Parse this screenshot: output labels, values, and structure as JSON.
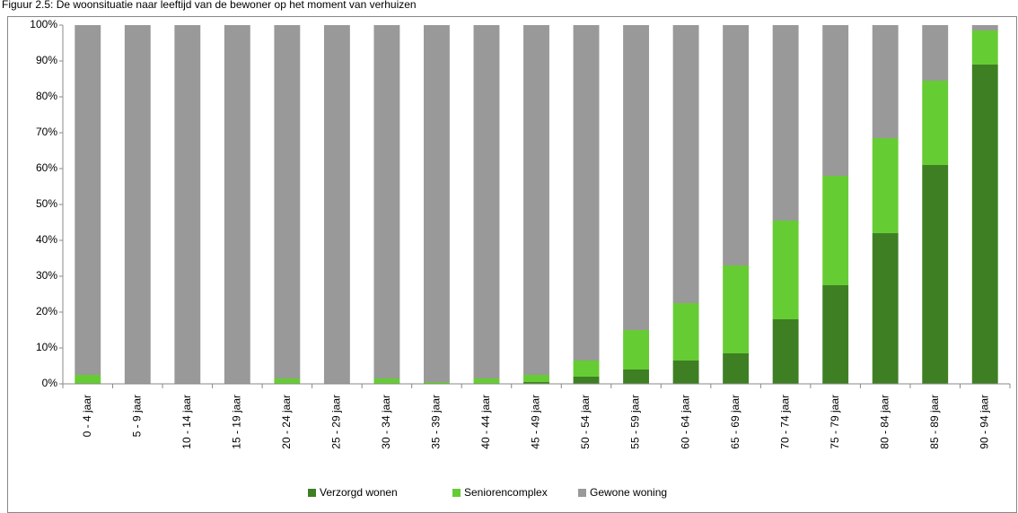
{
  "chart_data": {
    "type": "stacked-bar",
    "title": "Figuur 2.5: De woonsituatie naar leeftijd van de bewoner op het moment van verhuizen",
    "categories": [
      "0 - 4 jaar",
      "5 - 9 jaar",
      "10 - 14 jaar",
      "15 - 19 jaar",
      "20 - 24 jaar",
      "25 - 29 jaar",
      "30 - 34 jaar",
      "35 - 39 jaar",
      "40 - 44 jaar",
      "45 - 49 jaar",
      "50 - 54 jaar",
      "55 - 59 jaar",
      "60 - 64 jaar",
      "65 - 69 jaar",
      "70 - 74 jaar",
      "75 - 79 jaar",
      "80 - 84 jaar",
      "85 - 89 jaar",
      "90 - 94 jaar"
    ],
    "series": [
      {
        "name": "Verzorgd wonen",
        "color": "#3f7f24",
        "values": [
          0,
          0,
          0,
          0,
          0,
          0,
          0,
          0,
          0,
          0.5,
          2,
          4,
          6.5,
          8.5,
          18,
          27.5,
          42,
          61,
          89
        ]
      },
      {
        "name": "Seniorencomplex",
        "color": "#66cc33",
        "values": [
          2.5,
          0,
          0,
          0,
          1.5,
          0,
          1.5,
          0.5,
          1.5,
          2,
          4.5,
          11,
          16,
          24.5,
          27.5,
          30.5,
          26.5,
          23.5,
          9.5
        ]
      },
      {
        "name": "Gewone woning",
        "color": "#999999",
        "values": [
          97.5,
          100,
          100,
          100,
          98.5,
          100,
          98.5,
          99.5,
          98.5,
          97.5,
          93.5,
          85,
          77.5,
          67,
          54.5,
          42,
          31.5,
          15.5,
          1.5
        ]
      }
    ],
    "ylim": [
      0,
      100
    ],
    "yticks": [
      {
        "value": 0,
        "label": "0%"
      },
      {
        "value": 10,
        "label": "10%"
      },
      {
        "value": 20,
        "label": "20%"
      },
      {
        "value": 30,
        "label": "30%"
      },
      {
        "value": 40,
        "label": "40%"
      },
      {
        "value": 50,
        "label": "50%"
      },
      {
        "value": 60,
        "label": "60%"
      },
      {
        "value": 70,
        "label": "70%"
      },
      {
        "value": 80,
        "label": "80%"
      },
      {
        "value": 90,
        "label": "90%"
      },
      {
        "value": 100,
        "label": "100%"
      }
    ],
    "grid": false,
    "legend": "bottom"
  }
}
